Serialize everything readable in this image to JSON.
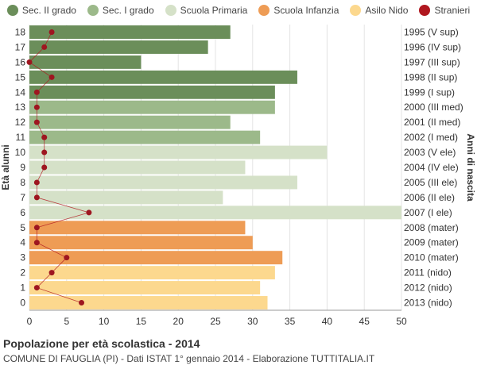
{
  "chart_data": {
    "type": "bar",
    "orientation": "horizontal",
    "title": "Popolazione per età scolastica - 2014",
    "subtitle": "COMUNE DI FAUGLIA (PI) - Dati ISTAT 1° gennaio 2014 - Elaborazione TUTTITALIA.IT",
    "ylabel": "Età alunni",
    "ylabel_right": "Anni di nascita",
    "xlim": [
      0,
      50
    ],
    "xticks": [
      0,
      5,
      10,
      15,
      20,
      25,
      30,
      35,
      40,
      45,
      50
    ],
    "grid": true,
    "legend_position": "top",
    "legend": [
      {
        "name": "Sec. II grado",
        "color": "#6b8e5a"
      },
      {
        "name": "Sec. I grado",
        "color": "#9cb98a"
      },
      {
        "name": "Scuola Primaria",
        "color": "#d5e1c8"
      },
      {
        "name": "Scuola Infanzia",
        "color": "#ee9c55"
      },
      {
        "name": "Asilo Nido",
        "color": "#fcd88e"
      },
      {
        "name": "Stranieri",
        "color": "#b0171f"
      }
    ],
    "rows": [
      {
        "age": "18",
        "year": "1995 (V sup)",
        "value": 27,
        "stranieri": 3,
        "group": 0
      },
      {
        "age": "17",
        "year": "1996 (IV sup)",
        "value": 24,
        "stranieri": 2,
        "group": 0
      },
      {
        "age": "16",
        "year": "1997 (III sup)",
        "value": 15,
        "stranieri": 0,
        "group": 0
      },
      {
        "age": "15",
        "year": "1998 (II sup)",
        "value": 36,
        "stranieri": 3,
        "group": 0
      },
      {
        "age": "14",
        "year": "1999 (I sup)",
        "value": 33,
        "stranieri": 1,
        "group": 0
      },
      {
        "age": "13",
        "year": "2000 (III med)",
        "value": 33,
        "stranieri": 1,
        "group": 1
      },
      {
        "age": "12",
        "year": "2001 (II med)",
        "value": 27,
        "stranieri": 1,
        "group": 1
      },
      {
        "age": "11",
        "year": "2002 (I med)",
        "value": 31,
        "stranieri": 2,
        "group": 1
      },
      {
        "age": "10",
        "year": "2003 (V ele)",
        "value": 40,
        "stranieri": 2,
        "group": 2
      },
      {
        "age": "9",
        "year": "2004 (IV ele)",
        "value": 29,
        "stranieri": 2,
        "group": 2
      },
      {
        "age": "8",
        "year": "2005 (III ele)",
        "value": 36,
        "stranieri": 1,
        "group": 2
      },
      {
        "age": "7",
        "year": "2006 (II ele)",
        "value": 26,
        "stranieri": 1,
        "group": 2
      },
      {
        "age": "6",
        "year": "2007 (I ele)",
        "value": 50,
        "stranieri": 8,
        "group": 2
      },
      {
        "age": "5",
        "year": "2008 (mater)",
        "value": 29,
        "stranieri": 1,
        "group": 3
      },
      {
        "age": "4",
        "year": "2009 (mater)",
        "value": 30,
        "stranieri": 1,
        "group": 3
      },
      {
        "age": "3",
        "year": "2010 (mater)",
        "value": 34,
        "stranieri": 5,
        "group": 3
      },
      {
        "age": "2",
        "year": "2011 (nido)",
        "value": 33,
        "stranieri": 3,
        "group": 4
      },
      {
        "age": "1",
        "year": "2012 (nido)",
        "value": 31,
        "stranieri": 1,
        "group": 4
      },
      {
        "age": "0",
        "year": "2013 (nido)",
        "value": 32,
        "stranieri": 7,
        "group": 4
      }
    ]
  }
}
